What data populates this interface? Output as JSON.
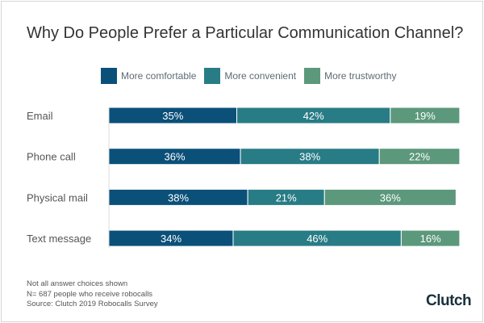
{
  "chart_data": {
    "type": "bar",
    "orientation": "horizontal",
    "stacked": true,
    "title": "Why Do People Prefer a Particular Communication Channel?",
    "categories": [
      "Email",
      "Phone call",
      "Physical mail",
      "Text message"
    ],
    "series": [
      {
        "name": "More comfortable",
        "color": "#0b5079",
        "values": [
          35,
          36,
          38,
          34
        ]
      },
      {
        "name": "More convenient",
        "color": "#287c85",
        "values": [
          42,
          38,
          21,
          46
        ]
      },
      {
        "name": "More trustworthy",
        "color": "#5c987b",
        "values": [
          19,
          22,
          36,
          16
        ]
      }
    ],
    "value_suffix": "%",
    "legend_position": "top",
    "grid": false
  },
  "notes": [
    "Not all answer choices shown",
    "N= 687 people who receive robocalls",
    "Source: Clutch 2019 Robocalls Survey"
  ],
  "logo": "Clutch"
}
